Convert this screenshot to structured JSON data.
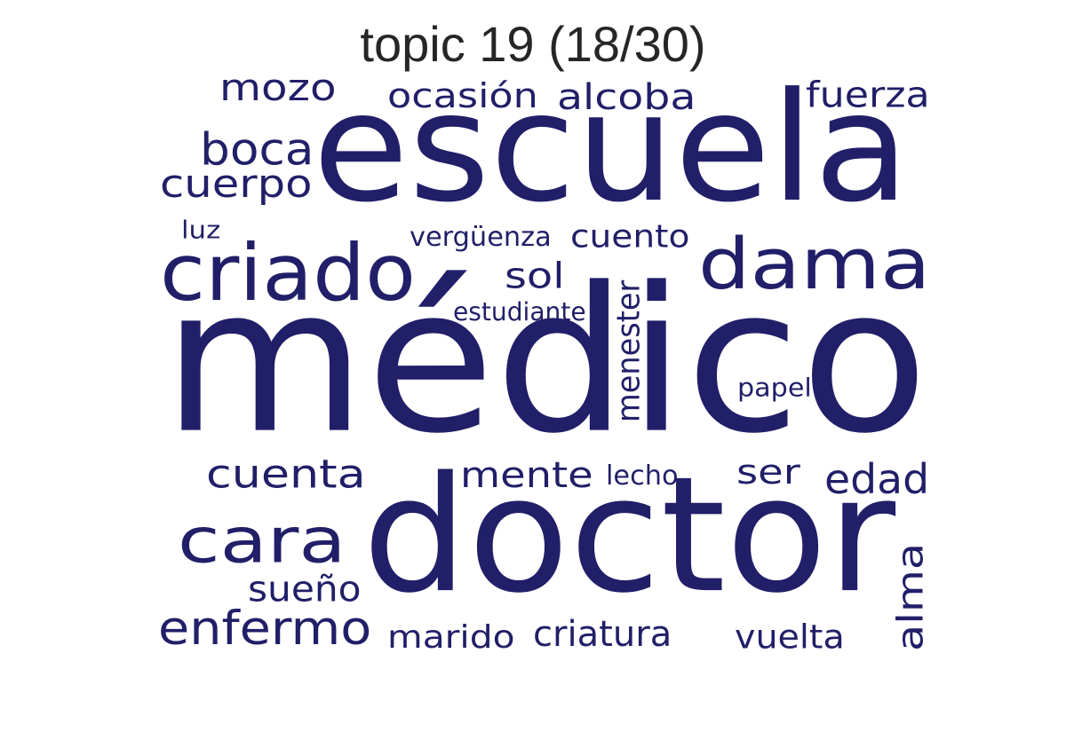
{
  "title": "topic 19 (18/30)",
  "word_color": "#211f68",
  "words": [
    {
      "text": "médico"
    },
    {
      "text": "doctor"
    },
    {
      "text": "escuela"
    },
    {
      "text": "dama"
    },
    {
      "text": "criado"
    },
    {
      "text": "cara"
    },
    {
      "text": "enfermo"
    },
    {
      "text": "cuenta"
    },
    {
      "text": "mente"
    },
    {
      "text": "edad"
    },
    {
      "text": "alma"
    },
    {
      "text": "boca"
    },
    {
      "text": "cuerpo"
    },
    {
      "text": "mozo"
    },
    {
      "text": "ocasión"
    },
    {
      "text": "alcoba"
    },
    {
      "text": "fuerza"
    },
    {
      "text": "cuento"
    },
    {
      "text": "sol"
    },
    {
      "text": "vergüenza"
    },
    {
      "text": "estudiante"
    },
    {
      "text": "menester"
    },
    {
      "text": "papel"
    },
    {
      "text": "ser"
    },
    {
      "text": "lecho"
    },
    {
      "text": "sueño"
    },
    {
      "text": "marido"
    },
    {
      "text": "criatura"
    },
    {
      "text": "vuelta"
    },
    {
      "text": "luz"
    }
  ]
}
